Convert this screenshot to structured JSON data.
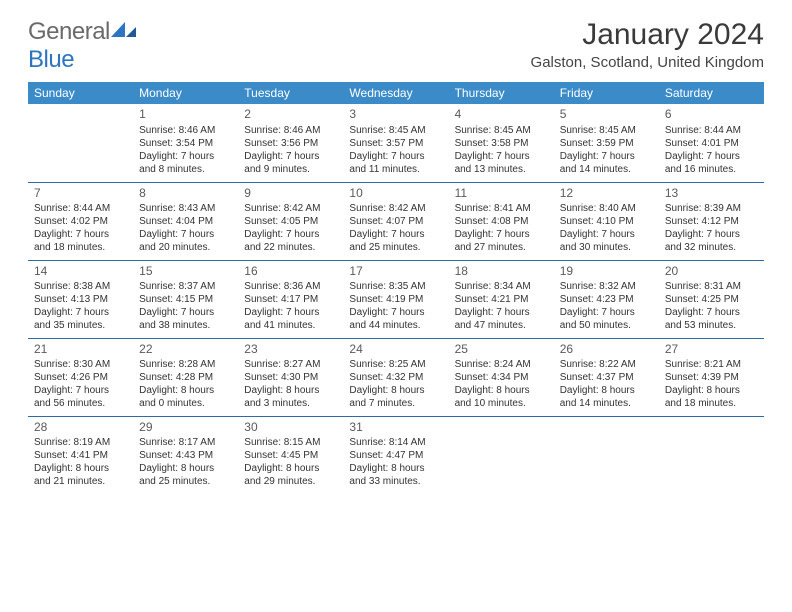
{
  "logo": {
    "word1": "General",
    "word2": "Blue"
  },
  "title": "January 2024",
  "location": "Galston, Scotland, United Kingdom",
  "colors": {
    "header_bg": "#3b8bc9",
    "header_text": "#ffffff",
    "row_border": "#2d6aa8",
    "logo_gray": "#6a6a6a",
    "logo_blue": "#2d75c0",
    "text": "#333333"
  },
  "dayHeaders": [
    "Sunday",
    "Monday",
    "Tuesday",
    "Wednesday",
    "Thursday",
    "Friday",
    "Saturday"
  ],
  "weeks": [
    [
      null,
      {
        "n": "1",
        "sr": "Sunrise: 8:46 AM",
        "ss": "Sunset: 3:54 PM",
        "d1": "Daylight: 7 hours",
        "d2": "and 8 minutes."
      },
      {
        "n": "2",
        "sr": "Sunrise: 8:46 AM",
        "ss": "Sunset: 3:56 PM",
        "d1": "Daylight: 7 hours",
        "d2": "and 9 minutes."
      },
      {
        "n": "3",
        "sr": "Sunrise: 8:45 AM",
        "ss": "Sunset: 3:57 PM",
        "d1": "Daylight: 7 hours",
        "d2": "and 11 minutes."
      },
      {
        "n": "4",
        "sr": "Sunrise: 8:45 AM",
        "ss": "Sunset: 3:58 PM",
        "d1": "Daylight: 7 hours",
        "d2": "and 13 minutes."
      },
      {
        "n": "5",
        "sr": "Sunrise: 8:45 AM",
        "ss": "Sunset: 3:59 PM",
        "d1": "Daylight: 7 hours",
        "d2": "and 14 minutes."
      },
      {
        "n": "6",
        "sr": "Sunrise: 8:44 AM",
        "ss": "Sunset: 4:01 PM",
        "d1": "Daylight: 7 hours",
        "d2": "and 16 minutes."
      }
    ],
    [
      {
        "n": "7",
        "sr": "Sunrise: 8:44 AM",
        "ss": "Sunset: 4:02 PM",
        "d1": "Daylight: 7 hours",
        "d2": "and 18 minutes."
      },
      {
        "n": "8",
        "sr": "Sunrise: 8:43 AM",
        "ss": "Sunset: 4:04 PM",
        "d1": "Daylight: 7 hours",
        "d2": "and 20 minutes."
      },
      {
        "n": "9",
        "sr": "Sunrise: 8:42 AM",
        "ss": "Sunset: 4:05 PM",
        "d1": "Daylight: 7 hours",
        "d2": "and 22 minutes."
      },
      {
        "n": "10",
        "sr": "Sunrise: 8:42 AM",
        "ss": "Sunset: 4:07 PM",
        "d1": "Daylight: 7 hours",
        "d2": "and 25 minutes."
      },
      {
        "n": "11",
        "sr": "Sunrise: 8:41 AM",
        "ss": "Sunset: 4:08 PM",
        "d1": "Daylight: 7 hours",
        "d2": "and 27 minutes."
      },
      {
        "n": "12",
        "sr": "Sunrise: 8:40 AM",
        "ss": "Sunset: 4:10 PM",
        "d1": "Daylight: 7 hours",
        "d2": "and 30 minutes."
      },
      {
        "n": "13",
        "sr": "Sunrise: 8:39 AM",
        "ss": "Sunset: 4:12 PM",
        "d1": "Daylight: 7 hours",
        "d2": "and 32 minutes."
      }
    ],
    [
      {
        "n": "14",
        "sr": "Sunrise: 8:38 AM",
        "ss": "Sunset: 4:13 PM",
        "d1": "Daylight: 7 hours",
        "d2": "and 35 minutes."
      },
      {
        "n": "15",
        "sr": "Sunrise: 8:37 AM",
        "ss": "Sunset: 4:15 PM",
        "d1": "Daylight: 7 hours",
        "d2": "and 38 minutes."
      },
      {
        "n": "16",
        "sr": "Sunrise: 8:36 AM",
        "ss": "Sunset: 4:17 PM",
        "d1": "Daylight: 7 hours",
        "d2": "and 41 minutes."
      },
      {
        "n": "17",
        "sr": "Sunrise: 8:35 AM",
        "ss": "Sunset: 4:19 PM",
        "d1": "Daylight: 7 hours",
        "d2": "and 44 minutes."
      },
      {
        "n": "18",
        "sr": "Sunrise: 8:34 AM",
        "ss": "Sunset: 4:21 PM",
        "d1": "Daylight: 7 hours",
        "d2": "and 47 minutes."
      },
      {
        "n": "19",
        "sr": "Sunrise: 8:32 AM",
        "ss": "Sunset: 4:23 PM",
        "d1": "Daylight: 7 hours",
        "d2": "and 50 minutes."
      },
      {
        "n": "20",
        "sr": "Sunrise: 8:31 AM",
        "ss": "Sunset: 4:25 PM",
        "d1": "Daylight: 7 hours",
        "d2": "and 53 minutes."
      }
    ],
    [
      {
        "n": "21",
        "sr": "Sunrise: 8:30 AM",
        "ss": "Sunset: 4:26 PM",
        "d1": "Daylight: 7 hours",
        "d2": "and 56 minutes."
      },
      {
        "n": "22",
        "sr": "Sunrise: 8:28 AM",
        "ss": "Sunset: 4:28 PM",
        "d1": "Daylight: 8 hours",
        "d2": "and 0 minutes."
      },
      {
        "n": "23",
        "sr": "Sunrise: 8:27 AM",
        "ss": "Sunset: 4:30 PM",
        "d1": "Daylight: 8 hours",
        "d2": "and 3 minutes."
      },
      {
        "n": "24",
        "sr": "Sunrise: 8:25 AM",
        "ss": "Sunset: 4:32 PM",
        "d1": "Daylight: 8 hours",
        "d2": "and 7 minutes."
      },
      {
        "n": "25",
        "sr": "Sunrise: 8:24 AM",
        "ss": "Sunset: 4:34 PM",
        "d1": "Daylight: 8 hours",
        "d2": "and 10 minutes."
      },
      {
        "n": "26",
        "sr": "Sunrise: 8:22 AM",
        "ss": "Sunset: 4:37 PM",
        "d1": "Daylight: 8 hours",
        "d2": "and 14 minutes."
      },
      {
        "n": "27",
        "sr": "Sunrise: 8:21 AM",
        "ss": "Sunset: 4:39 PM",
        "d1": "Daylight: 8 hours",
        "d2": "and 18 minutes."
      }
    ],
    [
      {
        "n": "28",
        "sr": "Sunrise: 8:19 AM",
        "ss": "Sunset: 4:41 PM",
        "d1": "Daylight: 8 hours",
        "d2": "and 21 minutes."
      },
      {
        "n": "29",
        "sr": "Sunrise: 8:17 AM",
        "ss": "Sunset: 4:43 PM",
        "d1": "Daylight: 8 hours",
        "d2": "and 25 minutes."
      },
      {
        "n": "30",
        "sr": "Sunrise: 8:15 AM",
        "ss": "Sunset: 4:45 PM",
        "d1": "Daylight: 8 hours",
        "d2": "and 29 minutes."
      },
      {
        "n": "31",
        "sr": "Sunrise: 8:14 AM",
        "ss": "Sunset: 4:47 PM",
        "d1": "Daylight: 8 hours",
        "d2": "and 33 minutes."
      },
      null,
      null,
      null
    ]
  ]
}
